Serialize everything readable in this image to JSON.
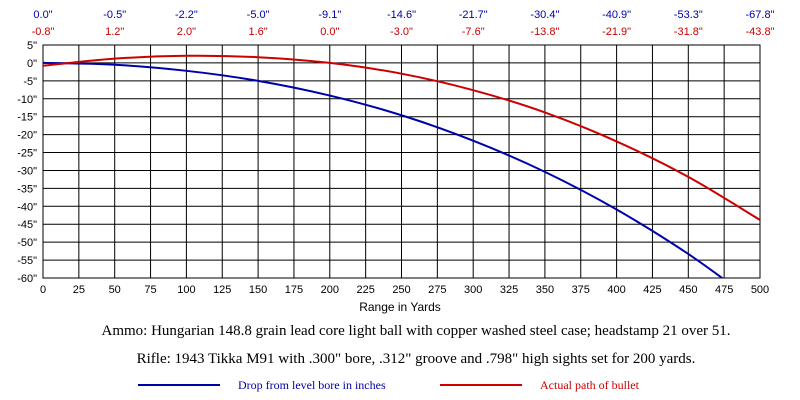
{
  "chart_data": {
    "type": "line",
    "xlabel": "Range in Yards",
    "ylabel": "",
    "x_ticks": [
      0,
      25,
      50,
      75,
      100,
      125,
      150,
      175,
      200,
      225,
      250,
      275,
      300,
      325,
      350,
      375,
      400,
      425,
      450,
      475,
      500
    ],
    "y_ticks": [
      "5\"",
      "0\"",
      "-5\"",
      "-10\"",
      "-15\"",
      "-20\"",
      "-25\"",
      "-30\"",
      "-35\"",
      "-40\"",
      "-45\"",
      "-50\"",
      "-55\"",
      "-60\""
    ],
    "y_tick_values": [
      5,
      0,
      -5,
      -10,
      -15,
      -20,
      -25,
      -30,
      -35,
      -40,
      -45,
      -50,
      -55,
      -60
    ],
    "xlim": [
      0,
      500
    ],
    "ylim": [
      -60,
      5
    ],
    "grid": true,
    "top_row_blue": [
      "0.0\"",
      "-0.5\"",
      "-2.2\"",
      "-5.0\"",
      "-9.1\"",
      "-14.6\"",
      "-21.7\"",
      "-30.4\"",
      "-40.9\"",
      "-53.3\"",
      "-67.8\""
    ],
    "top_row_red": [
      "-0.8\"",
      "1.2\"",
      "2.0\"",
      "1.6\"",
      "0.0\"",
      "-3.0\"",
      "-7.6\"",
      "-13.8\"",
      "-21.9\"",
      "-31.8\"",
      "-43.8\""
    ],
    "top_row_x": [
      0,
      50,
      100,
      150,
      200,
      250,
      300,
      350,
      400,
      450,
      500
    ],
    "series": [
      {
        "name": "Drop from level bore in inches",
        "color": "#0000aa",
        "x": [
          0,
          50,
          100,
          150,
          200,
          250,
          300,
          350,
          400,
          450,
          500
        ],
        "y": [
          0.0,
          -0.5,
          -2.2,
          -5.0,
          -9.1,
          -14.6,
          -21.7,
          -30.4,
          -40.9,
          -53.3,
          -67.8
        ]
      },
      {
        "name": "Actual path of bullet",
        "color": "#cc0000",
        "x": [
          0,
          50,
          100,
          150,
          200,
          250,
          300,
          350,
          400,
          450,
          500
        ],
        "y": [
          -0.8,
          1.2,
          2.0,
          1.6,
          0.0,
          -3.0,
          -7.6,
          -13.8,
          -21.9,
          -31.8,
          -43.8
        ]
      }
    ]
  },
  "captions": {
    "ammo": "Ammo:  Hungarian 148.8 grain lead core light ball with copper washed steel case; headstamp 21 over 51.",
    "rifle": "Rifle:  1943 Tikka M91 with .300\" bore, .312\" groove and .798\" high sights set for 200 yards."
  },
  "legend": {
    "blue_label": "Drop from level bore in inches",
    "red_label": "Actual path of bullet",
    "blue_color": "#0000aa",
    "red_color": "#cc0000"
  }
}
